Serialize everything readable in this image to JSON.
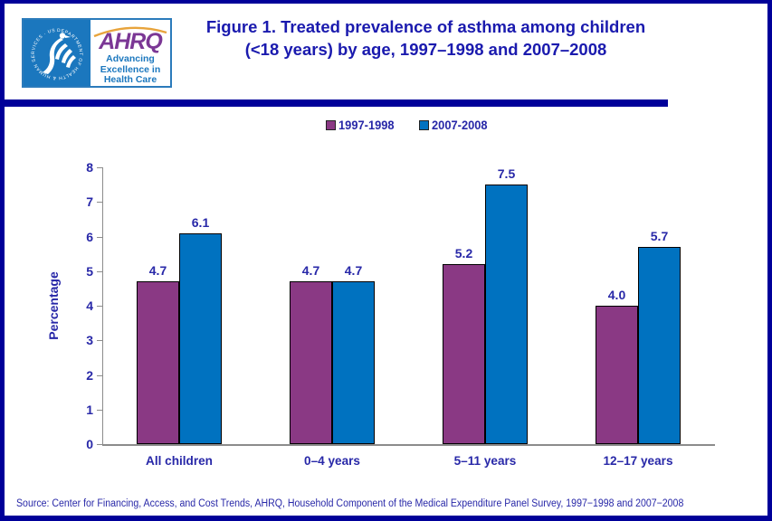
{
  "header": {
    "title_line1": "Figure 1. Treated prevalence of asthma among children",
    "title_line2": "(<18 years) by age, 1997–1998 and 2007–2008",
    "logo": {
      "org_abbr": "AHRQ",
      "tagline_line1": "Advancing",
      "tagline_line2": "Excellence in",
      "tagline_line3": "Health Care",
      "seal_text": "DEPARTMENT OF HEALTH & HUMAN SERVICES · USA"
    }
  },
  "chart_data": {
    "type": "bar",
    "title": "Treated prevalence of asthma among children (<18 years) by age, 1997-1998 and 2007-2008",
    "xlabel": "",
    "ylabel": "Percentage",
    "ylim": [
      0,
      8
    ],
    "yticks": [
      0,
      1,
      2,
      3,
      4,
      5,
      6,
      7,
      8
    ],
    "categories": [
      "All children",
      "0–4 years",
      "5–11 years",
      "12–17 years"
    ],
    "series": [
      {
        "name": "1997-1998",
        "color": "#8A3984",
        "values": [
          4.7,
          4.7,
          5.2,
          4.0
        ]
      },
      {
        "name": "2007-2008",
        "color": "#0072C0",
        "values": [
          6.1,
          4.7,
          7.5,
          5.7
        ]
      }
    ],
    "legend_position": "top-center",
    "grid": false,
    "axis_color": "#8C8C8C",
    "text_color": "#2828A8",
    "bar_border_color": "#000000"
  },
  "footer": {
    "source": "Source: Center for Financing, Access, and Cost Trends, AHRQ, Household Component of the Medical Expenditure Panel Survey, 1997−1998 and 2007−2008"
  },
  "colors": {
    "border_navy": "#000099",
    "title_blue": "#1A1AAE",
    "logo_blue": "#1B77BE",
    "ahrq_purple": "#7B3795",
    "arc_orange": "#E8A43C"
  }
}
